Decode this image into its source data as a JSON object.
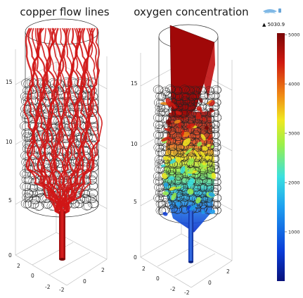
{
  "chart_data": [
    {
      "type": "3d-streamline",
      "title": "copper flow lines",
      "z_ticks": [
        "0",
        "5",
        "10",
        "15"
      ],
      "x_ticks": [
        "2",
        "0",
        "-2"
      ],
      "y_ticks": [
        "-2",
        "0",
        "2"
      ],
      "series_color": "#d01616"
    },
    {
      "type": "3d-volume-slice",
      "title": "oxygen concentration",
      "z_ticks": [
        "0",
        "5",
        "10",
        "15"
      ],
      "x_ticks": [
        "2",
        "0",
        "-2"
      ],
      "y_ticks": [
        "-2",
        "0",
        "2"
      ],
      "colorbar": {
        "max_label": "▲ 5030.9",
        "ticks": [
          "5000",
          "4000",
          "3000",
          "2000",
          "1000"
        ],
        "tick_values": [
          5000,
          4000,
          3000,
          2000,
          1000
        ],
        "range": [
          0,
          5030.9
        ],
        "colormap": [
          "#08127a",
          "#0a3cd8",
          "#1ea0f0",
          "#3ae0e0",
          "#9af04a",
          "#f0e820",
          "#f08a14",
          "#d01a10",
          "#7a0606"
        ]
      }
    }
  ]
}
